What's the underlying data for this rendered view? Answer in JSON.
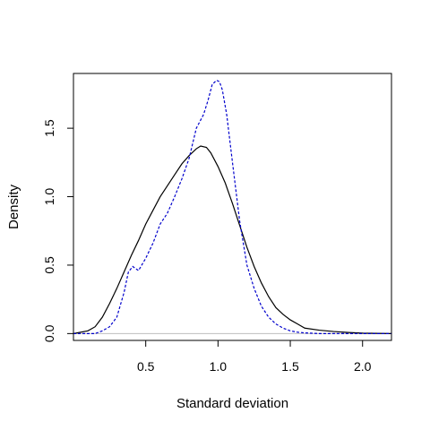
{
  "chart_data": {
    "type": "line",
    "title": "",
    "xlabel": "Standard deviation",
    "ylabel": "Density",
    "xlim": [
      0.0,
      2.2
    ],
    "ylim": [
      -0.05,
      1.9
    ],
    "x_ticks": [
      0.5,
      1.0,
      1.5,
      2.0
    ],
    "x_tick_labels": [
      "0.5",
      "1.0",
      "1.5",
      "2.0"
    ],
    "y_ticks": [
      0.0,
      0.5,
      1.0,
      1.5
    ],
    "y_tick_labels": [
      "0.0",
      "0.5",
      "1.0",
      "1.5"
    ],
    "grid": false,
    "baseline": 0.0,
    "colors": {
      "black_series": "#000000",
      "blue_series": "#0000cc",
      "baseline": "#bebebe"
    },
    "series": [
      {
        "color": "#000000",
        "dash": "none",
        "x": [
          0.0,
          0.1,
          0.15,
          0.2,
          0.25,
          0.3,
          0.35,
          0.4,
          0.45,
          0.5,
          0.55,
          0.6,
          0.65,
          0.7,
          0.75,
          0.8,
          0.85,
          0.88,
          0.92,
          0.95,
          1.0,
          1.05,
          1.1,
          1.15,
          1.2,
          1.25,
          1.3,
          1.35,
          1.4,
          1.45,
          1.5,
          1.55,
          1.6,
          1.7,
          1.8,
          1.9,
          2.0,
          2.2
        ],
        "y": [
          0.0,
          0.02,
          0.05,
          0.12,
          0.22,
          0.33,
          0.45,
          0.57,
          0.68,
          0.8,
          0.9,
          1.0,
          1.08,
          1.16,
          1.24,
          1.3,
          1.35,
          1.37,
          1.36,
          1.32,
          1.22,
          1.1,
          0.95,
          0.79,
          0.63,
          0.49,
          0.37,
          0.27,
          0.19,
          0.14,
          0.1,
          0.07,
          0.04,
          0.025,
          0.015,
          0.008,
          0.003,
          0.0
        ]
      },
      {
        "color": "#0000cc",
        "dash": "3,2",
        "x": [
          0.0,
          0.1,
          0.15,
          0.2,
          0.25,
          0.3,
          0.35,
          0.38,
          0.41,
          0.45,
          0.5,
          0.55,
          0.6,
          0.65,
          0.7,
          0.75,
          0.8,
          0.85,
          0.9,
          0.93,
          0.96,
          0.99,
          1.01,
          1.03,
          1.06,
          1.1,
          1.15,
          1.2,
          1.25,
          1.3,
          1.35,
          1.4,
          1.45,
          1.5,
          1.55,
          1.6,
          1.7,
          1.8,
          2.0,
          2.2
        ],
        "y": [
          0.0,
          0.0,
          0.0,
          0.02,
          0.05,
          0.12,
          0.3,
          0.45,
          0.49,
          0.46,
          0.55,
          0.66,
          0.8,
          0.88,
          1.0,
          1.13,
          1.28,
          1.5,
          1.6,
          1.7,
          1.82,
          1.85,
          1.84,
          1.78,
          1.6,
          1.25,
          0.82,
          0.5,
          0.33,
          0.2,
          0.12,
          0.07,
          0.04,
          0.02,
          0.01,
          0.005,
          0.0,
          0.0,
          0.0,
          0.0
        ]
      }
    ]
  }
}
